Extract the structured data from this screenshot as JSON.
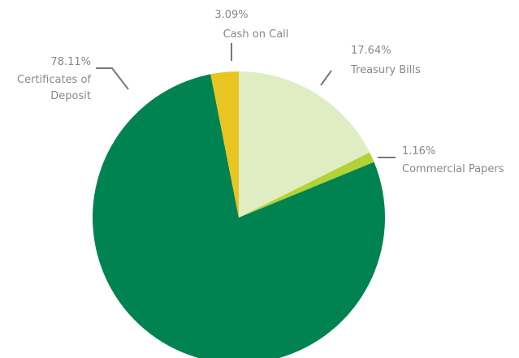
{
  "chart_data": {
    "type": "pie",
    "title": "",
    "slices": [
      {
        "label": "Treasury Bills",
        "value": 17.64,
        "display": "17.64%",
        "color": "#E0EDC3"
      },
      {
        "label": "Commercial Papers",
        "value": 1.16,
        "display": "1.16%",
        "color": "#B2D235"
      },
      {
        "label": "Certificates of Deposit",
        "label_lines": [
          "Certificates of",
          "Deposit"
        ],
        "value": 78.11,
        "display": "78.11%",
        "color": "#008350"
      },
      {
        "label": "Cash on Call",
        "value": 3.09,
        "display": "3.09%",
        "color": "#E8C521"
      }
    ],
    "start_angle_deg": 0,
    "direction": "clockwise",
    "legend": "none",
    "label_style": "outside labels with leader lines"
  }
}
